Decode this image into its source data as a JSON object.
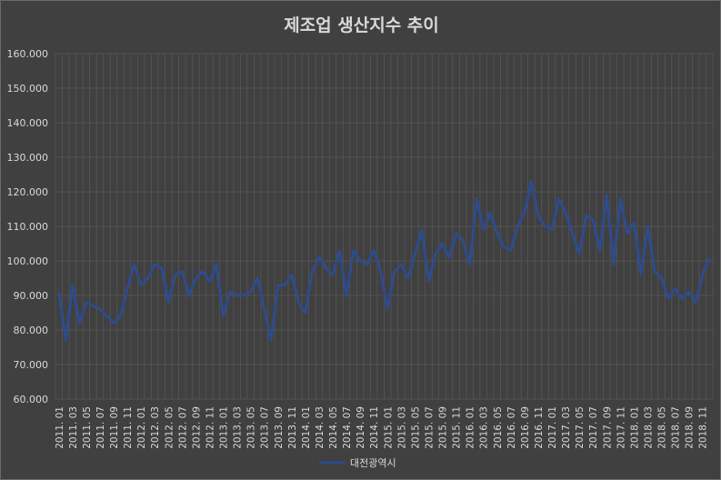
{
  "chart_data": {
    "type": "line",
    "title": "제조업 생산지수 추이",
    "xlabel": "",
    "ylabel": "",
    "ylim": [
      60,
      160
    ],
    "yticks": [
      "60.000",
      "70.000",
      "80.000",
      "90.000",
      "100.000",
      "110.000",
      "120.000",
      "130.000",
      "140.000",
      "150.000",
      "160.000"
    ],
    "grid": true,
    "legend": "bottom",
    "colors": {
      "background": "#404040",
      "grid": "#595959",
      "text": "#d9d9d9",
      "series": "#2e4b8c"
    },
    "x": [
      "2011. 01",
      "2011. 02",
      "2011. 03",
      "2011. 04",
      "2011. 05",
      "2011. 06",
      "2011. 07",
      "2011. 08",
      "2011. 09",
      "2011. 10",
      "2011. 11",
      "2011. 12",
      "2012. 01",
      "2012. 02",
      "2012. 03",
      "2012. 04",
      "2012. 05",
      "2012. 06",
      "2012. 07",
      "2012. 08",
      "2012. 09",
      "2012. 10",
      "2012. 11",
      "2012. 12",
      "2013. 01",
      "2013. 02",
      "2013. 03",
      "2013. 04",
      "2013. 05",
      "2013. 06",
      "2013. 07",
      "2013. 08",
      "2013. 09",
      "2013. 10",
      "2013. 11",
      "2013. 12",
      "2014. 01",
      "2014. 02",
      "2014. 03",
      "2014. 04",
      "2014. 05",
      "2014. 06",
      "2014. 07",
      "2014. 08",
      "2014. 09",
      "2014. 10",
      "2014. 11",
      "2014. 12",
      "2015. 01",
      "2015. 02",
      "2015. 03",
      "2015. 04",
      "2015. 05",
      "2015. 06",
      "2015. 07",
      "2015. 08",
      "2015. 09",
      "2015. 10",
      "2015. 11",
      "2015. 12",
      "2016. 01",
      "2016. 02",
      "2016. 03",
      "2016. 04",
      "2016. 05",
      "2016. 06",
      "2016. 07",
      "2016. 08",
      "2016. 09",
      "2016. 10",
      "2016. 11",
      "2016. 12",
      "2017. 01",
      "2017. 02",
      "2017. 03",
      "2017. 04",
      "2017. 05",
      "2017. 06",
      "2017. 07",
      "2017. 08",
      "2017. 09",
      "2017. 10",
      "2017. 11",
      "2017. 12",
      "2018. 01",
      "2018. 02",
      "2018. 03",
      "2018. 04",
      "2018. 05",
      "2018. 06",
      "2018. 07",
      "2018. 08",
      "2018. 09",
      "2018. 10",
      "2018. 11",
      "2018. 12"
    ],
    "x_tick_labels": [
      "2011. 01",
      "2011. 03",
      "2011. 05",
      "2011. 07",
      "2011. 09",
      "2011. 11",
      "2012. 01",
      "2012. 03",
      "2012. 05",
      "2012. 07",
      "2012. 09",
      "2012. 11",
      "2013. 01",
      "2013. 03",
      "2013. 05",
      "2013. 07",
      "2013. 09",
      "2013. 11",
      "2014. 01",
      "2014. 03",
      "2014. 05",
      "2014. 07",
      "2014. 09",
      "2014. 11",
      "2015. 01",
      "2015. 03",
      "2015. 05",
      "2015. 07",
      "2015. 09",
      "2015. 11",
      "2016. 01",
      "2016. 03",
      "2016. 05",
      "2016. 07",
      "2016. 09",
      "2016. 11",
      "2017. 01",
      "2017. 03",
      "2017. 05",
      "2017. 07",
      "2017. 09",
      "2017. 11",
      "2018. 01",
      "2018. 03",
      "2018. 05",
      "2018. 07",
      "2018. 09",
      "2018. 11"
    ],
    "series": [
      {
        "name": "대전광역시",
        "values": [
          91,
          77,
          93,
          82,
          88,
          87,
          86,
          84,
          82,
          84,
          92,
          99,
          93,
          95,
          99,
          98,
          88,
          96,
          97,
          90,
          95,
          97,
          94,
          99,
          84,
          91,
          90,
          90,
          91,
          95,
          86,
          77,
          93,
          93,
          96,
          88,
          85,
          97,
          101,
          98,
          96,
          103,
          90,
          103,
          100,
          99,
          103,
          97,
          86,
          97,
          99,
          95,
          102,
          109,
          94,
          102,
          105,
          101,
          108,
          106,
          99,
          118,
          109,
          114,
          108,
          104,
          103,
          110,
          114,
          123,
          113,
          110,
          109,
          118,
          114,
          108,
          102,
          113,
          112,
          103,
          119,
          99,
          118,
          108,
          111,
          96,
          110,
          97,
          95,
          89,
          92,
          89,
          91,
          88,
          96,
          101
        ]
      }
    ]
  }
}
